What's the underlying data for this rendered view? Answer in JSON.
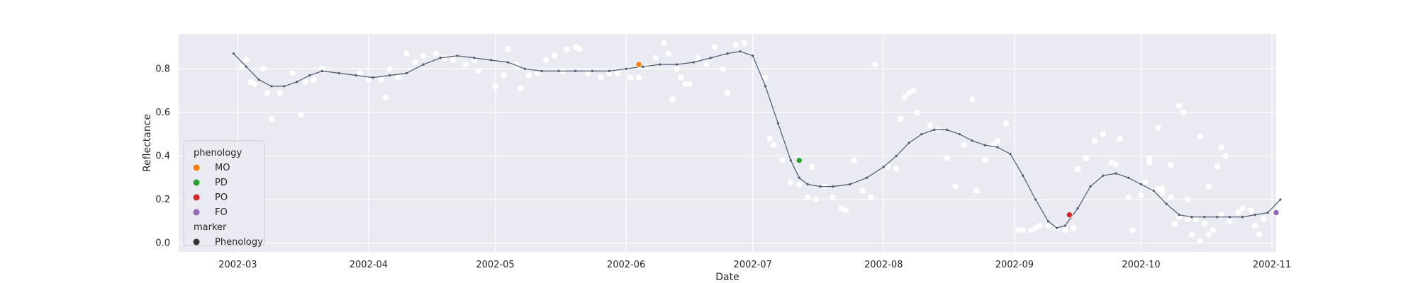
{
  "chart_data": {
    "type": "scatter",
    "title": "",
    "xlabel": "Date",
    "ylabel": "Reflectance",
    "x_range": [
      "2002-02-15",
      "2002-11-02"
    ],
    "ylim": [
      -0.04,
      0.96
    ],
    "x_ticks": [
      "2002-03-01",
      "2002-04-01",
      "2002-05-01",
      "2002-06-01",
      "2002-07-01",
      "2002-08-01",
      "2002-09-01",
      "2002-10-01",
      "2002-11-01"
    ],
    "x_tick_labels": [
      "2002-03",
      "2002-04",
      "2002-05",
      "2002-06",
      "2002-07",
      "2002-08",
      "2002-09",
      "2002-10",
      "2002-11"
    ],
    "y_ticks": [
      0.0,
      0.2,
      0.4,
      0.6,
      0.8
    ],
    "y_tick_labels": [
      "0.0",
      "0.2",
      "0.4",
      "0.6",
      "0.8"
    ],
    "grid": true,
    "background": "#eaeaf2",
    "legend": {
      "placement": "lower-left",
      "groups": [
        {
          "title": "phenology",
          "entries": [
            {
              "label": "MO",
              "color": "#ff7f0e"
            },
            {
              "label": "PD",
              "color": "#2ca02c"
            },
            {
              "label": "PO",
              "color": "#d62728"
            },
            {
              "label": "FO",
              "color": "#9467bd"
            }
          ]
        },
        {
          "title": "marker",
          "entries": [
            {
              "label": "Phenology",
              "color": "#333333"
            }
          ]
        }
      ]
    },
    "series": [
      {
        "kind": "observations",
        "color": "#ffffff",
        "points": [
          [
            "2002-03-02",
            0.81
          ],
          [
            "2002-03-03",
            0.84
          ],
          [
            "2002-03-04",
            0.74
          ],
          [
            "2002-03-05",
            0.73
          ],
          [
            "2002-03-07",
            0.8
          ],
          [
            "2002-03-08",
            0.69
          ],
          [
            "2002-03-09",
            0.57
          ],
          [
            "2002-03-11",
            0.69
          ],
          [
            "2002-03-14",
            0.78
          ],
          [
            "2002-03-16",
            0.59
          ],
          [
            "2002-03-17",
            0.74
          ],
          [
            "2002-03-19",
            0.75
          ],
          [
            "2002-03-21",
            0.8
          ],
          [
            "2002-03-30",
            0.78
          ],
          [
            "2002-04-01",
            0.75
          ],
          [
            "2002-04-04",
            0.75
          ],
          [
            "2002-04-05",
            0.67
          ],
          [
            "2002-04-06",
            0.8
          ],
          [
            "2002-04-08",
            0.76
          ],
          [
            "2002-04-10",
            0.87
          ],
          [
            "2002-04-12",
            0.83
          ],
          [
            "2002-04-14",
            0.86
          ],
          [
            "2002-04-17",
            0.87
          ],
          [
            "2002-04-19",
            0.85
          ],
          [
            "2002-04-21",
            0.84
          ],
          [
            "2002-04-24",
            0.82
          ],
          [
            "2002-04-26",
            0.84
          ],
          [
            "2002-04-27",
            0.79
          ],
          [
            "2002-05-01",
            0.72
          ],
          [
            "2002-05-03",
            0.77
          ],
          [
            "2002-05-04",
            0.89
          ],
          [
            "2002-05-06",
            0.82
          ],
          [
            "2002-05-07",
            0.71
          ],
          [
            "2002-05-09",
            0.77
          ],
          [
            "2002-05-11",
            0.78
          ],
          [
            "2002-05-13",
            0.84
          ],
          [
            "2002-05-15",
            0.86
          ],
          [
            "2002-05-17",
            0.79
          ],
          [
            "2002-05-18",
            0.89
          ],
          [
            "2002-05-20",
            0.9
          ],
          [
            "2002-05-21",
            0.89
          ],
          [
            "2002-05-23",
            0.78
          ],
          [
            "2002-05-26",
            0.76
          ],
          [
            "2002-05-28",
            0.78
          ],
          [
            "2002-05-30",
            0.78
          ],
          [
            "2002-06-02",
            0.76
          ],
          [
            "2002-06-04",
            0.76
          ],
          [
            "2002-06-06",
            0.81
          ],
          [
            "2002-06-08",
            0.85
          ],
          [
            "2002-06-10",
            0.92
          ],
          [
            "2002-06-11",
            0.87
          ],
          [
            "2002-06-12",
            0.66
          ],
          [
            "2002-06-13",
            0.8
          ],
          [
            "2002-06-14",
            0.76
          ],
          [
            "2002-06-15",
            0.73
          ],
          [
            "2002-06-16",
            0.73
          ],
          [
            "2002-06-18",
            0.85
          ],
          [
            "2002-06-20",
            0.82
          ],
          [
            "2002-06-22",
            0.9
          ],
          [
            "2002-06-24",
            0.8
          ],
          [
            "2002-06-25",
            0.69
          ],
          [
            "2002-06-27",
            0.91
          ],
          [
            "2002-06-29",
            0.92
          ],
          [
            "2002-07-04",
            0.76
          ],
          [
            "2002-07-05",
            0.48
          ],
          [
            "2002-07-06",
            0.45
          ],
          [
            "2002-07-08",
            0.38
          ],
          [
            "2002-07-10",
            0.28
          ],
          [
            "2002-07-12",
            0.27
          ],
          [
            "2002-07-14",
            0.21
          ],
          [
            "2002-07-15",
            0.35
          ],
          [
            "2002-07-16",
            0.2
          ],
          [
            "2002-07-18",
            0.26
          ],
          [
            "2002-07-20",
            0.21
          ],
          [
            "2002-07-22",
            0.16
          ],
          [
            "2002-07-23",
            0.15
          ],
          [
            "2002-07-25",
            0.38
          ],
          [
            "2002-07-27",
            0.24
          ],
          [
            "2002-07-29",
            0.21
          ],
          [
            "2002-07-30",
            0.82
          ],
          [
            "2002-08-02",
            0.35
          ],
          [
            "2002-08-04",
            0.34
          ],
          [
            "2002-08-05",
            0.57
          ],
          [
            "2002-08-06",
            0.67
          ],
          [
            "2002-08-07",
            0.69
          ],
          [
            "2002-08-08",
            0.7
          ],
          [
            "2002-08-09",
            0.6
          ],
          [
            "2002-08-12",
            0.54
          ],
          [
            "2002-08-14",
            0.52
          ],
          [
            "2002-08-16",
            0.39
          ],
          [
            "2002-08-18",
            0.26
          ],
          [
            "2002-08-20",
            0.45
          ],
          [
            "2002-08-22",
            0.66
          ],
          [
            "2002-08-23",
            0.24
          ],
          [
            "2002-08-25",
            0.38
          ],
          [
            "2002-08-27",
            0.45
          ],
          [
            "2002-08-28",
            0.47
          ],
          [
            "2002-08-30",
            0.55
          ],
          [
            "2002-09-02",
            0.06
          ],
          [
            "2002-09-03",
            0.06
          ],
          [
            "2002-09-05",
            0.06
          ],
          [
            "2002-09-06",
            0.07
          ],
          [
            "2002-09-07",
            0.08
          ],
          [
            "2002-09-09",
            0.08
          ],
          [
            "2002-09-11",
            0.07
          ],
          [
            "2002-09-13",
            0.06
          ],
          [
            "2002-09-15",
            0.07
          ],
          [
            "2002-09-16",
            0.34
          ],
          [
            "2002-09-18",
            0.39
          ],
          [
            "2002-09-20",
            0.47
          ],
          [
            "2002-09-22",
            0.5
          ],
          [
            "2002-09-24",
            0.37
          ],
          [
            "2002-09-25",
            0.36
          ],
          [
            "2002-09-26",
            0.48
          ],
          [
            "2002-09-28",
            0.21
          ],
          [
            "2002-09-29",
            0.06
          ],
          [
            "2002-10-01",
            0.22
          ],
          [
            "2002-10-02",
            0.28
          ],
          [
            "2002-10-03",
            0.37
          ],
          [
            "2002-10-04",
            0.24
          ],
          [
            "2002-10-05",
            0.25
          ],
          [
            "2002-10-06",
            0.25
          ],
          [
            "2002-10-08",
            0.21
          ],
          [
            "2002-10-09",
            0.09
          ],
          [
            "2002-10-10",
            0.12
          ],
          [
            "2002-10-12",
            0.2
          ],
          [
            "2002-10-13",
            0.04
          ],
          [
            "2002-10-14",
            0.11
          ],
          [
            "2002-10-15",
            0.01
          ],
          [
            "2002-10-16",
            0.09
          ],
          [
            "2002-10-17",
            0.04
          ],
          [
            "2002-10-18",
            0.06
          ],
          [
            "2002-10-20",
            0.13
          ],
          [
            "2002-10-22",
            0.1
          ],
          [
            "2002-10-24",
            0.14
          ],
          [
            "2002-10-25",
            0.16
          ],
          [
            "2002-10-27",
            0.15
          ],
          [
            "2002-10-28",
            0.08
          ],
          [
            "2002-10-29",
            0.04
          ],
          [
            "2002-10-30",
            0.11
          ],
          [
            "2002-10-03",
            0.39
          ],
          [
            "2002-10-05",
            0.53
          ],
          [
            "2002-10-06",
            0.23
          ],
          [
            "2002-10-08",
            0.36
          ],
          [
            "2002-10-10",
            0.63
          ],
          [
            "2002-10-11",
            0.6
          ],
          [
            "2002-10-12",
            0.11
          ],
          [
            "2002-10-15",
            0.49
          ],
          [
            "2002-10-17",
            0.26
          ],
          [
            "2002-10-19",
            0.35
          ],
          [
            "2002-10-20",
            0.44
          ],
          [
            "2002-10-21",
            0.4
          ]
        ]
      },
      {
        "kind": "fitted-curve",
        "color": "#4a5a6a",
        "points": [
          [
            "2002-02-28",
            0.87
          ],
          [
            "2002-03-03",
            0.81
          ],
          [
            "2002-03-06",
            0.75
          ],
          [
            "2002-03-09",
            0.72
          ],
          [
            "2002-03-12",
            0.72
          ],
          [
            "2002-03-15",
            0.74
          ],
          [
            "2002-03-18",
            0.77
          ],
          [
            "2002-03-21",
            0.79
          ],
          [
            "2002-03-25",
            0.78
          ],
          [
            "2002-03-29",
            0.77
          ],
          [
            "2002-04-02",
            0.76
          ],
          [
            "2002-04-06",
            0.77
          ],
          [
            "2002-04-10",
            0.78
          ],
          [
            "2002-04-14",
            0.82
          ],
          [
            "2002-04-18",
            0.85
          ],
          [
            "2002-04-22",
            0.86
          ],
          [
            "2002-04-26",
            0.85
          ],
          [
            "2002-04-30",
            0.84
          ],
          [
            "2002-05-04",
            0.83
          ],
          [
            "2002-05-08",
            0.8
          ],
          [
            "2002-05-12",
            0.79
          ],
          [
            "2002-05-16",
            0.79
          ],
          [
            "2002-05-20",
            0.79
          ],
          [
            "2002-05-24",
            0.79
          ],
          [
            "2002-05-28",
            0.79
          ],
          [
            "2002-06-01",
            0.8
          ],
          [
            "2002-06-05",
            0.81
          ],
          [
            "2002-06-09",
            0.82
          ],
          [
            "2002-06-13",
            0.82
          ],
          [
            "2002-06-17",
            0.83
          ],
          [
            "2002-06-21",
            0.85
          ],
          [
            "2002-06-25",
            0.87
          ],
          [
            "2002-06-28",
            0.88
          ],
          [
            "2002-07-01",
            0.86
          ],
          [
            "2002-07-04",
            0.72
          ],
          [
            "2002-07-07",
            0.55
          ],
          [
            "2002-07-10",
            0.38
          ],
          [
            "2002-07-12",
            0.3
          ],
          [
            "2002-07-14",
            0.27
          ],
          [
            "2002-07-17",
            0.26
          ],
          [
            "2002-07-20",
            0.26
          ],
          [
            "2002-07-24",
            0.27
          ],
          [
            "2002-07-28",
            0.3
          ],
          [
            "2002-08-01",
            0.35
          ],
          [
            "2002-08-04",
            0.4
          ],
          [
            "2002-08-07",
            0.46
          ],
          [
            "2002-08-10",
            0.5
          ],
          [
            "2002-08-13",
            0.52
          ],
          [
            "2002-08-16",
            0.52
          ],
          [
            "2002-08-19",
            0.5
          ],
          [
            "2002-08-22",
            0.47
          ],
          [
            "2002-08-25",
            0.45
          ],
          [
            "2002-08-28",
            0.44
          ],
          [
            "2002-08-31",
            0.41
          ],
          [
            "2002-09-03",
            0.31
          ],
          [
            "2002-09-06",
            0.2
          ],
          [
            "2002-09-09",
            0.1
          ],
          [
            "2002-09-11",
            0.07
          ],
          [
            "2002-09-13",
            0.08
          ],
          [
            "2002-09-16",
            0.16
          ],
          [
            "2002-09-19",
            0.26
          ],
          [
            "2002-09-22",
            0.31
          ],
          [
            "2002-09-25",
            0.32
          ],
          [
            "2002-09-28",
            0.3
          ],
          [
            "2002-10-01",
            0.27
          ],
          [
            "2002-10-04",
            0.24
          ],
          [
            "2002-10-07",
            0.18
          ],
          [
            "2002-10-10",
            0.13
          ],
          [
            "2002-10-13",
            0.12
          ],
          [
            "2002-10-16",
            0.12
          ],
          [
            "2002-10-19",
            0.12
          ],
          [
            "2002-10-22",
            0.12
          ],
          [
            "2002-10-25",
            0.12
          ],
          [
            "2002-10-28",
            0.13
          ],
          [
            "2002-10-31",
            0.14
          ],
          [
            "2002-11-03",
            0.2
          ]
        ]
      },
      {
        "kind": "phenology",
        "points": [
          {
            "label": "MO",
            "x": "2002-06-04",
            "y": 0.82,
            "color": "#ff7f0e"
          },
          {
            "label": "PD",
            "x": "2002-07-12",
            "y": 0.38,
            "color": "#2ca02c"
          },
          {
            "label": "PO",
            "x": "2002-09-14",
            "y": 0.13,
            "color": "#d62728"
          },
          {
            "label": "FO",
            "x": "2002-11-02",
            "y": 0.14,
            "color": "#9467bd"
          }
        ]
      }
    ]
  }
}
